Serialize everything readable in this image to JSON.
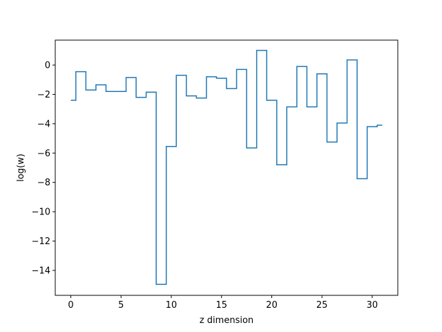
{
  "chart_data": {
    "type": "line",
    "drawstyle": "steps-mid",
    "title": "",
    "xlabel": "z dimension",
    "ylabel": "log(w)",
    "xlim": [
      -1.55,
      32.55
    ],
    "ylim": [
      -15.7,
      1.7
    ],
    "xticks": [
      0,
      5,
      10,
      15,
      20,
      25,
      30
    ],
    "yticks": [
      -14,
      -12,
      -10,
      -8,
      -6,
      -4,
      -2,
      0
    ],
    "grid": false,
    "legend": "none",
    "series": [
      {
        "color": "#1f77b4",
        "x": [
          0,
          1,
          2,
          3,
          4,
          5,
          6,
          7,
          8,
          9,
          10,
          11,
          12,
          13,
          14,
          15,
          16,
          17,
          18,
          19,
          20,
          21,
          22,
          23,
          24,
          25,
          26,
          27,
          28,
          29,
          30,
          31
        ],
        "y": [
          -2.4,
          -0.45,
          -1.7,
          -1.35,
          -1.8,
          -1.8,
          -0.85,
          -2.2,
          -1.85,
          -14.95,
          -5.55,
          -0.7,
          -2.1,
          -2.25,
          -0.8,
          -0.9,
          -1.6,
          -0.3,
          -5.65,
          1.0,
          -2.4,
          -6.8,
          -2.85,
          -0.1,
          -2.85,
          -0.6,
          -5.25,
          -3.95,
          0.35,
          -7.75,
          -4.2,
          -4.1
        ]
      }
    ]
  }
}
